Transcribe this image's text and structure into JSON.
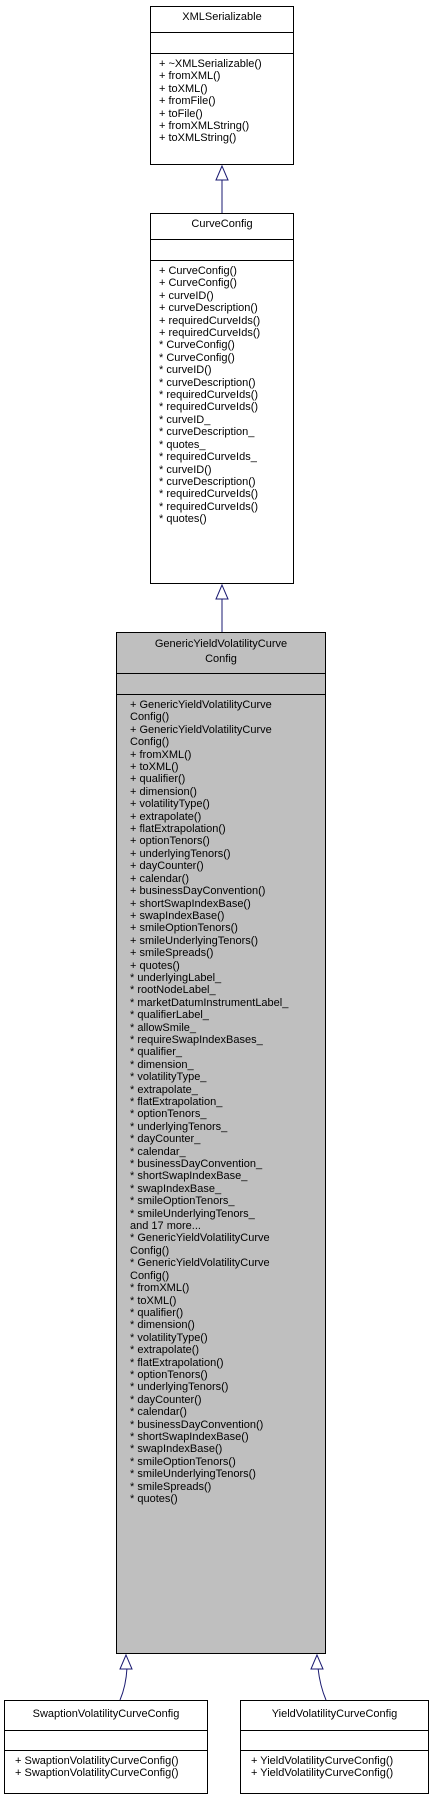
{
  "classes": {
    "xmlserializable": {
      "name": "XMLSerializable",
      "members": [
        "+ ~XMLSerializable()",
        "+ fromXML()",
        "+ toXML()",
        "+ fromFile()",
        "+ toFile()",
        "+ fromXMLString()",
        "+ toXMLString()"
      ]
    },
    "curveconfig": {
      "name": "CurveConfig",
      "members": [
        "+ CurveConfig()",
        "+ CurveConfig()",
        "+ curveID()",
        "+ curveDescription()",
        "+ requiredCurveIds()",
        "+ requiredCurveIds()",
        "* CurveConfig()",
        "* CurveConfig()",
        "* curveID()",
        "* curveDescription()",
        "* requiredCurveIds()",
        "* requiredCurveIds()",
        "* curveID_",
        "* curveDescription_",
        "* quotes_",
        "* requiredCurveIds_",
        "* curveID()",
        "* curveDescription()",
        "* requiredCurveIds()",
        "* requiredCurveIds()",
        "* quotes()"
      ]
    },
    "genericyieldvolatilitycurveconfig": {
      "name_line1": "GenericYieldVolatilityCurve",
      "name_line2": "Config",
      "members": [
        "+ GenericYieldVolatilityCurve",
        "Config()",
        "+ GenericYieldVolatilityCurve",
        "Config()",
        "+ fromXML()",
        "+ toXML()",
        "+ qualifier()",
        "+ dimension()",
        "+ volatilityType()",
        "+ extrapolate()",
        "+ flatExtrapolation()",
        "+ optionTenors()",
        "+ underlyingTenors()",
        "+ dayCounter()",
        "+ calendar()",
        "+ businessDayConvention()",
        "+ shortSwapIndexBase()",
        "+ swapIndexBase()",
        "+ smileOptionTenors()",
        "+ smileUnderlyingTenors()",
        "+ smileSpreads()",
        "+ quotes()",
        "* underlyingLabel_",
        "* rootNodeLabel_",
        "* marketDatumInstrumentLabel_",
        "* qualifierLabel_",
        "* allowSmile_",
        "* requireSwapIndexBases_",
        "* qualifier_",
        "* dimension_",
        "* volatilityType_",
        "* extrapolate_",
        "* flatExtrapolation_",
        "* optionTenors_",
        "* underlyingTenors_",
        "* dayCounter_",
        "* calendar_",
        "* businessDayConvention_",
        "* shortSwapIndexBase_",
        "* swapIndexBase_",
        "* smileOptionTenors_",
        "* smileUnderlyingTenors_",
        "and 17 more...",
        "* GenericYieldVolatilityCurve",
        "Config()",
        "* GenericYieldVolatilityCurve",
        "Config()",
        "* fromXML()",
        "* toXML()",
        "* qualifier()",
        "* dimension()",
        "* volatilityType()",
        "* extrapolate()",
        "* flatExtrapolation()",
        "* optionTenors()",
        "* underlyingTenors()",
        "* dayCounter()",
        "* calendar()",
        "* businessDayConvention()",
        "* shortSwapIndexBase()",
        "* swapIndexBase()",
        "* smileOptionTenors()",
        "* smileUnderlyingTenors()",
        "* smileSpreads()",
        "* quotes()"
      ]
    },
    "swaptionvolatilitycurveconfig": {
      "name": "SwaptionVolatilityCurveConfig",
      "members": [
        "+ SwaptionVolatilityCurveConfig()",
        "+ SwaptionVolatilityCurveConfig()"
      ]
    },
    "yieldvolatilitycurveconfig": {
      "name": "YieldVolatilityCurveConfig",
      "members": [
        "+ YieldVolatilityCurveConfig()",
        "+ YieldVolatilityCurveConfig()"
      ]
    }
  },
  "colors": {
    "edge": "#191970",
    "highlight": "#bfbfbf"
  }
}
